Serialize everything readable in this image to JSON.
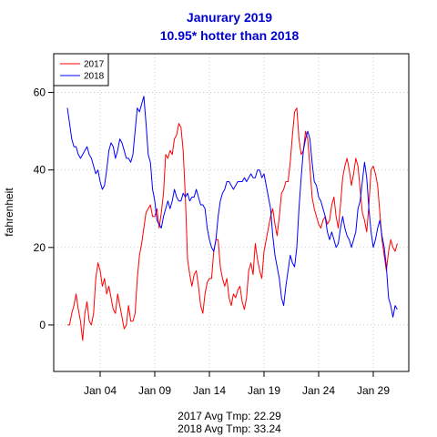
{
  "chart_data": {
    "type": "line",
    "title": "Janurary 2019",
    "subtitle": "10.95* hotter than 2018",
    "ylabel": "fahrenheit",
    "xlabel": "",
    "x_range": [
      "Jan 01",
      "Jan 31"
    ],
    "ylim": [
      -12,
      70
    ],
    "y_ticks": [
      0,
      20,
      40,
      60
    ],
    "x_ticks": [
      {
        "day": 4,
        "label": "Jan 04"
      },
      {
        "day": 9,
        "label": "Jan 09"
      },
      {
        "day": 14,
        "label": "Jan 14"
      },
      {
        "day": 19,
        "label": "Jan 19"
      },
      {
        "day": 24,
        "label": "Jan 24"
      },
      {
        "day": 29,
        "label": "Jan 29"
      }
    ],
    "grid": true,
    "legend_position": "top-left",
    "footer": [
      "2017 Avg Tmp: 22.29",
      "2018 Avg Tmp: 33.24"
    ],
    "series": [
      {
        "name": "2017",
        "color": "#ff0000",
        "points": [
          [
            1.0,
            0
          ],
          [
            1.2,
            0
          ],
          [
            1.4,
            3
          ],
          [
            1.6,
            5
          ],
          [
            1.8,
            8
          ],
          [
            2.0,
            4
          ],
          [
            2.2,
            1
          ],
          [
            2.4,
            -4
          ],
          [
            2.6,
            3
          ],
          [
            2.8,
            6
          ],
          [
            3.0,
            1
          ],
          [
            3.2,
            0
          ],
          [
            3.4,
            3
          ],
          [
            3.6,
            12
          ],
          [
            3.8,
            16
          ],
          [
            4.0,
            14
          ],
          [
            4.2,
            10
          ],
          [
            4.4,
            12
          ],
          [
            4.6,
            8
          ],
          [
            4.8,
            10
          ],
          [
            5.0,
            7
          ],
          [
            5.2,
            4
          ],
          [
            5.4,
            3
          ],
          [
            5.6,
            8
          ],
          [
            5.8,
            5
          ],
          [
            6.0,
            2
          ],
          [
            6.2,
            -1
          ],
          [
            6.4,
            0
          ],
          [
            6.6,
            5
          ],
          [
            6.8,
            1
          ],
          [
            7.0,
            1
          ],
          [
            7.2,
            3
          ],
          [
            7.4,
            12
          ],
          [
            7.6,
            18
          ],
          [
            7.8,
            21
          ],
          [
            8.0,
            25
          ],
          [
            8.2,
            29
          ],
          [
            8.4,
            30
          ],
          [
            8.6,
            31
          ],
          [
            8.8,
            28
          ],
          [
            9.0,
            28
          ],
          [
            9.2,
            30
          ],
          [
            9.4,
            25
          ],
          [
            9.6,
            29
          ],
          [
            9.8,
            34
          ],
          [
            10.0,
            44
          ],
          [
            10.2,
            43
          ],
          [
            10.4,
            45
          ],
          [
            10.6,
            44
          ],
          [
            10.8,
            48
          ],
          [
            11.0,
            49
          ],
          [
            11.2,
            52
          ],
          [
            11.4,
            51
          ],
          [
            11.6,
            45
          ],
          [
            11.8,
            33
          ],
          [
            12.0,
            17
          ],
          [
            12.2,
            13
          ],
          [
            12.4,
            10
          ],
          [
            12.6,
            13
          ],
          [
            12.8,
            14
          ],
          [
            13.0,
            10
          ],
          [
            13.2,
            5
          ],
          [
            13.4,
            3
          ],
          [
            13.6,
            8
          ],
          [
            13.8,
            11
          ],
          [
            14.0,
            12
          ],
          [
            14.2,
            12
          ],
          [
            14.4,
            19
          ],
          [
            14.6,
            22
          ],
          [
            14.8,
            22
          ],
          [
            15.0,
            15
          ],
          [
            15.2,
            12
          ],
          [
            15.4,
            10
          ],
          [
            15.6,
            12
          ],
          [
            15.8,
            7
          ],
          [
            16.0,
            5
          ],
          [
            16.2,
            8
          ],
          [
            16.4,
            7
          ],
          [
            16.6,
            9
          ],
          [
            16.8,
            10
          ],
          [
            17.0,
            6
          ],
          [
            17.2,
            4
          ],
          [
            17.4,
            7
          ],
          [
            17.6,
            14
          ],
          [
            17.8,
            16
          ],
          [
            18.0,
            13
          ],
          [
            18.2,
            21
          ],
          [
            18.4,
            17
          ],
          [
            18.6,
            14
          ],
          [
            18.8,
            12
          ],
          [
            19.0,
            19
          ],
          [
            19.2,
            22
          ],
          [
            19.4,
            25
          ],
          [
            19.6,
            28
          ],
          [
            19.8,
            30
          ],
          [
            20.0,
            26
          ],
          [
            20.2,
            23
          ],
          [
            20.4,
            28
          ],
          [
            20.6,
            34
          ],
          [
            20.8,
            35
          ],
          [
            21.0,
            37
          ],
          [
            21.2,
            37
          ],
          [
            21.4,
            42
          ],
          [
            21.6,
            49
          ],
          [
            21.8,
            55
          ],
          [
            22.0,
            56
          ],
          [
            22.2,
            48
          ],
          [
            22.4,
            44
          ],
          [
            22.6,
            45
          ],
          [
            22.8,
            50
          ],
          [
            23.0,
            48
          ],
          [
            23.2,
            41
          ],
          [
            23.4,
            33
          ],
          [
            23.6,
            30
          ],
          [
            23.8,
            28
          ],
          [
            24.0,
            26
          ],
          [
            24.2,
            25
          ],
          [
            24.4,
            27
          ],
          [
            24.6,
            28
          ],
          [
            24.8,
            26
          ],
          [
            25.0,
            27
          ],
          [
            25.2,
            31
          ],
          [
            25.4,
            33
          ],
          [
            25.6,
            28
          ],
          [
            25.8,
            25
          ],
          [
            26.0,
            31
          ],
          [
            26.2,
            38
          ],
          [
            26.4,
            41
          ],
          [
            26.6,
            43
          ],
          [
            26.8,
            40
          ],
          [
            27.0,
            36
          ],
          [
            27.2,
            39
          ],
          [
            27.4,
            43
          ],
          [
            27.6,
            41
          ],
          [
            27.8,
            35
          ],
          [
            28.0,
            29
          ],
          [
            28.2,
            27
          ],
          [
            28.4,
            24
          ],
          [
            28.6,
            31
          ],
          [
            28.8,
            40
          ],
          [
            29.0,
            41
          ],
          [
            29.2,
            39
          ],
          [
            29.4,
            36
          ],
          [
            29.6,
            29
          ],
          [
            29.8,
            22
          ],
          [
            30.0,
            18
          ],
          [
            30.2,
            14
          ],
          [
            30.4,
            19
          ],
          [
            30.6,
            22
          ],
          [
            30.8,
            20
          ],
          [
            31.0,
            19
          ],
          [
            31.2,
            21
          ]
        ]
      },
      {
        "name": "2018",
        "color": "#0000ff",
        "points": [
          [
            1.0,
            56
          ],
          [
            1.2,
            52
          ],
          [
            1.4,
            48
          ],
          [
            1.6,
            46
          ],
          [
            1.8,
            46
          ],
          [
            2.0,
            44
          ],
          [
            2.2,
            43
          ],
          [
            2.4,
            44
          ],
          [
            2.6,
            45
          ],
          [
            2.8,
            46
          ],
          [
            3.0,
            44
          ],
          [
            3.2,
            43
          ],
          [
            3.4,
            41
          ],
          [
            3.6,
            39
          ],
          [
            3.8,
            40
          ],
          [
            4.0,
            37
          ],
          [
            4.2,
            35
          ],
          [
            4.4,
            36
          ],
          [
            4.6,
            40
          ],
          [
            4.8,
            45
          ],
          [
            5.0,
            47
          ],
          [
            5.2,
            46
          ],
          [
            5.4,
            43
          ],
          [
            5.6,
            45
          ],
          [
            5.8,
            48
          ],
          [
            6.0,
            47
          ],
          [
            6.2,
            45
          ],
          [
            6.4,
            43
          ],
          [
            6.6,
            43
          ],
          [
            6.8,
            42
          ],
          [
            7.0,
            44
          ],
          [
            7.2,
            50
          ],
          [
            7.4,
            56
          ],
          [
            7.6,
            55
          ],
          [
            7.8,
            57
          ],
          [
            8.0,
            59
          ],
          [
            8.2,
            52
          ],
          [
            8.4,
            44
          ],
          [
            8.6,
            42
          ],
          [
            8.8,
            35
          ],
          [
            9.0,
            32
          ],
          [
            9.2,
            27
          ],
          [
            9.4,
            26
          ],
          [
            9.6,
            25
          ],
          [
            9.8,
            28
          ],
          [
            10.0,
            30
          ],
          [
            10.2,
            32
          ],
          [
            10.4,
            30
          ],
          [
            10.6,
            32
          ],
          [
            10.8,
            35
          ],
          [
            11.0,
            33
          ],
          [
            11.2,
            32
          ],
          [
            11.4,
            32
          ],
          [
            11.6,
            34
          ],
          [
            11.8,
            33
          ],
          [
            12.0,
            34
          ],
          [
            12.2,
            32
          ],
          [
            12.4,
            33
          ],
          [
            12.6,
            33
          ],
          [
            12.8,
            35
          ],
          [
            13.0,
            33
          ],
          [
            13.2,
            31
          ],
          [
            13.4,
            31
          ],
          [
            13.6,
            30
          ],
          [
            13.8,
            25
          ],
          [
            14.0,
            22
          ],
          [
            14.2,
            20
          ],
          [
            14.4,
            19
          ],
          [
            14.6,
            22
          ],
          [
            14.8,
            28
          ],
          [
            15.0,
            32
          ],
          [
            15.2,
            34
          ],
          [
            15.4,
            35
          ],
          [
            15.6,
            37
          ],
          [
            15.8,
            37
          ],
          [
            16.0,
            36
          ],
          [
            16.2,
            35
          ],
          [
            16.4,
            36
          ],
          [
            16.6,
            37
          ],
          [
            16.8,
            37
          ],
          [
            17.0,
            37
          ],
          [
            17.2,
            38
          ],
          [
            17.4,
            37
          ],
          [
            17.6,
            38
          ],
          [
            17.8,
            39
          ],
          [
            18.0,
            38
          ],
          [
            18.2,
            38
          ],
          [
            18.4,
            40
          ],
          [
            18.6,
            40
          ],
          [
            18.8,
            38
          ],
          [
            19.0,
            39
          ],
          [
            19.2,
            36
          ],
          [
            19.4,
            33
          ],
          [
            19.6,
            30
          ],
          [
            19.8,
            23
          ],
          [
            20.0,
            18
          ],
          [
            20.2,
            15
          ],
          [
            20.4,
            12
          ],
          [
            20.6,
            7
          ],
          [
            20.8,
            5
          ],
          [
            21.0,
            10
          ],
          [
            21.2,
            14
          ],
          [
            21.4,
            18
          ],
          [
            21.6,
            16
          ],
          [
            21.8,
            15
          ],
          [
            22.0,
            20
          ],
          [
            22.2,
            30
          ],
          [
            22.4,
            38
          ],
          [
            22.6,
            45
          ],
          [
            22.8,
            48
          ],
          [
            23.0,
            50
          ],
          [
            23.2,
            48
          ],
          [
            23.4,
            42
          ],
          [
            23.6,
            37
          ],
          [
            23.8,
            36
          ],
          [
            24.0,
            33
          ],
          [
            24.2,
            32
          ],
          [
            24.4,
            30
          ],
          [
            24.6,
            28
          ],
          [
            24.8,
            24
          ],
          [
            25.0,
            22
          ],
          [
            25.2,
            24
          ],
          [
            25.4,
            22
          ],
          [
            25.6,
            20
          ],
          [
            25.8,
            21
          ],
          [
            26.0,
            25
          ],
          [
            26.2,
            28
          ],
          [
            26.4,
            25
          ],
          [
            26.6,
            23
          ],
          [
            26.8,
            22
          ],
          [
            27.0,
            20
          ],
          [
            27.2,
            22
          ],
          [
            27.4,
            24
          ],
          [
            27.6,
            30
          ],
          [
            27.8,
            32
          ],
          [
            28.0,
            37
          ],
          [
            28.2,
            42
          ],
          [
            28.4,
            38
          ],
          [
            28.6,
            30
          ],
          [
            28.8,
            24
          ],
          [
            29.0,
            20
          ],
          [
            29.2,
            22
          ],
          [
            29.4,
            25
          ],
          [
            29.6,
            27
          ],
          [
            29.8,
            23
          ],
          [
            30.0,
            20
          ],
          [
            30.2,
            15
          ],
          [
            30.4,
            7
          ],
          [
            30.6,
            5
          ],
          [
            30.8,
            2
          ],
          [
            31.0,
            5
          ],
          [
            31.2,
            4
          ]
        ]
      }
    ]
  }
}
